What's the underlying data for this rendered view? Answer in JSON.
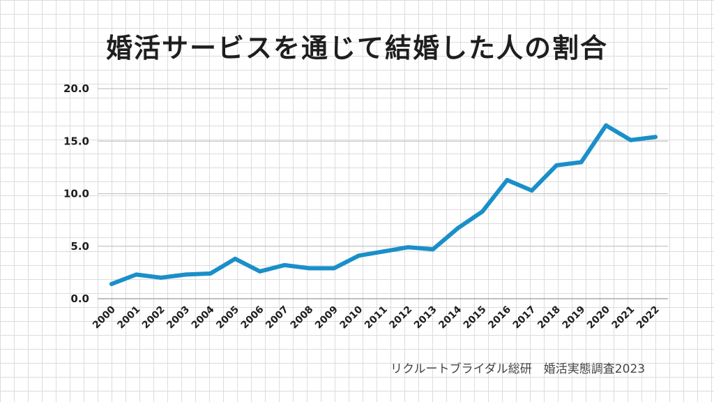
{
  "chart_data": {
    "type": "line",
    "title": "婚活サービスを通じて結婚した人の割合",
    "xlabel": "",
    "ylabel": "",
    "ylim": [
      0,
      20
    ],
    "y_ticks": [
      "0.0",
      "5.0",
      "10.0",
      "15.0",
      "20.0"
    ],
    "categories": [
      "2000",
      "2001",
      "2002",
      "2003",
      "2004",
      "2005",
      "2006",
      "2007",
      "2008",
      "2009",
      "2010",
      "2011",
      "2012",
      "2013",
      "2014",
      "2015",
      "2016",
      "2017",
      "2018",
      "2019",
      "2020",
      "2021",
      "2022"
    ],
    "series": [
      {
        "color": "#1a8fc9",
        "values": [
          1.4,
          2.3,
          2.0,
          2.3,
          2.4,
          3.8,
          2.6,
          3.2,
          2.9,
          2.9,
          4.1,
          4.5,
          4.9,
          4.7,
          6.7,
          8.3,
          11.3,
          10.3,
          12.7,
          13.0,
          16.5,
          15.1,
          15.4
        ]
      }
    ],
    "grid": true
  },
  "source": "リクルートブライダル総研　婚活実態調査2023"
}
